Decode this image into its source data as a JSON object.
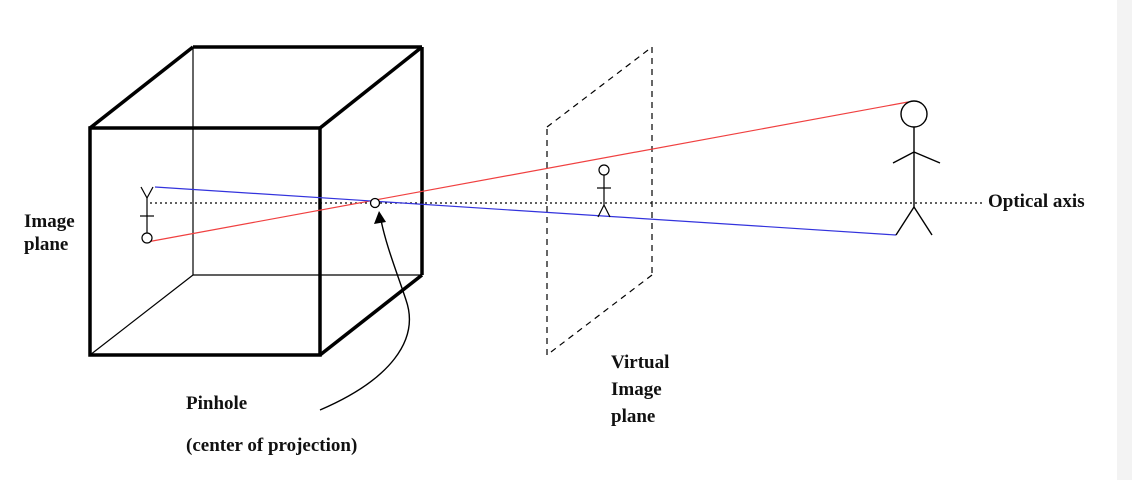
{
  "labels": {
    "image_plane": [
      "Image",
      "plane"
    ],
    "optical_axis": "Optical axis",
    "virtual_image_plane": [
      "Virtual",
      "Image",
      "plane"
    ],
    "pinhole": "Pinhole",
    "center_of_projection": "(center of projection)"
  },
  "colors": {
    "red_ray": "#f04040",
    "blue_ray": "#3333dd",
    "stroke": "#000000",
    "background": "#ffffff"
  }
}
